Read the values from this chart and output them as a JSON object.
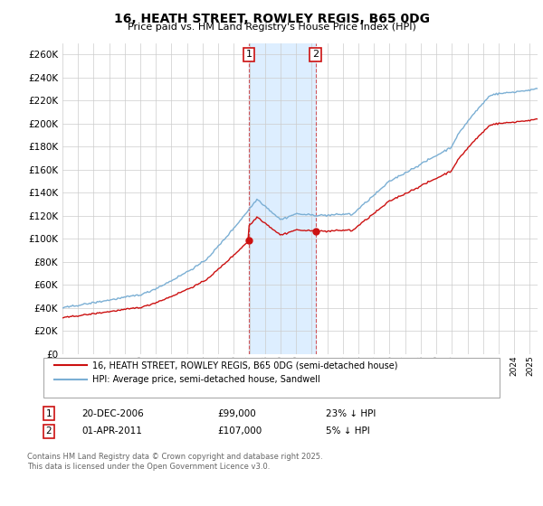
{
  "title": "16, HEATH STREET, ROWLEY REGIS, B65 0DG",
  "subtitle": "Price paid vs. HM Land Registry's House Price Index (HPI)",
  "yticks": [
    0,
    20000,
    40000,
    60000,
    80000,
    100000,
    120000,
    140000,
    160000,
    180000,
    200000,
    220000,
    240000,
    260000
  ],
  "hpi_color": "#7bafd4",
  "price_color": "#cc1111",
  "shade_color": "#ddeeff",
  "grid_color": "#cccccc",
  "annotation1_date": "20-DEC-2006",
  "annotation1_price": "£99,000",
  "annotation1_hpi": "23% ↓ HPI",
  "annotation1_year": 2006.97,
  "annotation2_date": "01-APR-2011",
  "annotation2_price": "£107,000",
  "annotation2_hpi": "5% ↓ HPI",
  "annotation2_year": 2011.25,
  "sale1_price": 99000,
  "sale2_price": 107000,
  "legend_line1": "16, HEATH STREET, ROWLEY REGIS, B65 0DG (semi-detached house)",
  "legend_line2": "HPI: Average price, semi-detached house, Sandwell",
  "footnote": "Contains HM Land Registry data © Crown copyright and database right 2025.\nThis data is licensed under the Open Government Licence v3.0.",
  "xmin": 1995,
  "xmax": 2025.5
}
